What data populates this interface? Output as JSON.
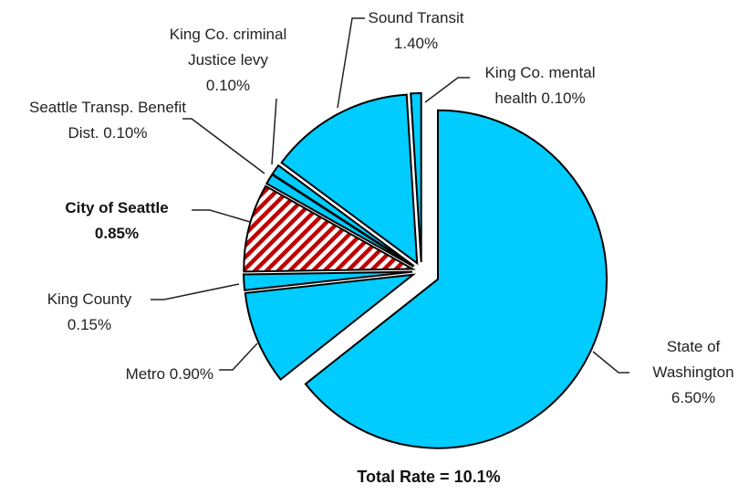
{
  "chart_data": {
    "type": "pie",
    "title": "Total Rate = 10.1%",
    "categories": [
      "State of Washington",
      "Metro",
      "King County",
      "City of Seattle",
      "Seattle Transp. Benefit Dist.",
      "King Co. criminal Justice levy",
      "Sound Transit",
      "King Co. mental health"
    ],
    "values": [
      6.5,
      0.9,
      0.15,
      0.85,
      0.1,
      0.1,
      1.4,
      0.1
    ],
    "value_labels": [
      "6.50%",
      "0.90%",
      "0.15%",
      "0.85%",
      "0.10%",
      "0.10%",
      "1.40%",
      "0.10%"
    ],
    "colors": [
      "#00ccff",
      "#00ccff",
      "#00ccff",
      "#c00000",
      "#00ccff",
      "#00ccff",
      "#00ccff",
      "#00ccff"
    ],
    "hatch": [
      false,
      false,
      false,
      true,
      false,
      false,
      false,
      false
    ]
  }
}
